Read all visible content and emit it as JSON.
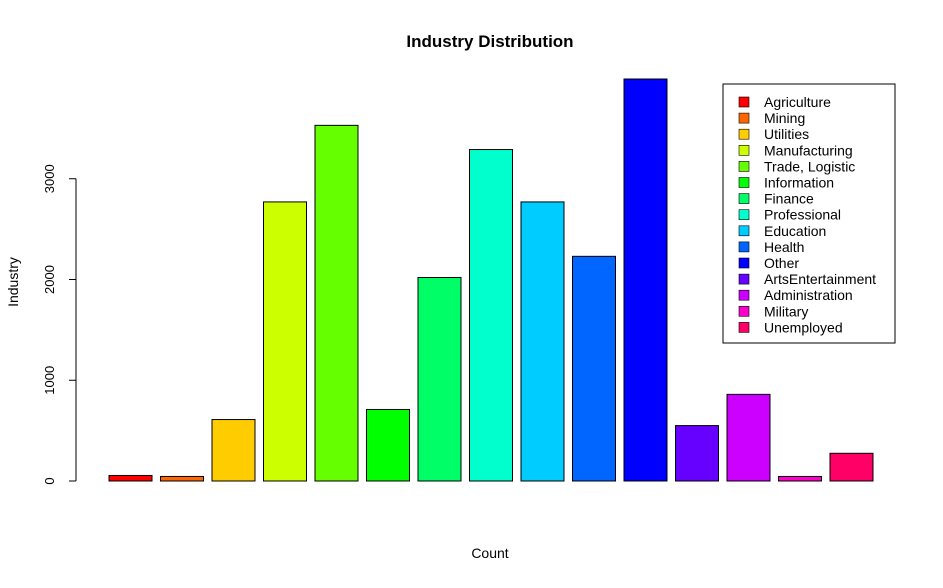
{
  "chart_data": {
    "type": "bar",
    "title": "Industry Distribution",
    "xlabel": "Count",
    "ylabel": "Industry",
    "ylim": [
      0,
      4000
    ],
    "yticks": [
      0,
      1000,
      2000,
      3000
    ],
    "grid": false,
    "legend_position": "top-right",
    "categories": [
      "Agriculture",
      "Mining",
      "Utilities",
      "Manufacturing",
      "Trade, Logistic",
      "Information",
      "Finance",
      "Professional",
      "Education",
      "Health",
      "Other",
      "ArtsEntertainment",
      "Administration",
      "Military",
      "Unemployed"
    ],
    "values": [
      55,
      45,
      610,
      2770,
      3530,
      710,
      2020,
      3290,
      2770,
      2230,
      3990,
      550,
      860,
      45,
      275
    ],
    "colors": [
      "#FF0000",
      "#FF6600",
      "#FFCC00",
      "#CCFF00",
      "#66FF00",
      "#00FF00",
      "#00FF66",
      "#00FFCC",
      "#00CCFF",
      "#0066FF",
      "#0000FF",
      "#6600FF",
      "#CC00FF",
      "#FF00CC",
      "#FF0066"
    ]
  }
}
